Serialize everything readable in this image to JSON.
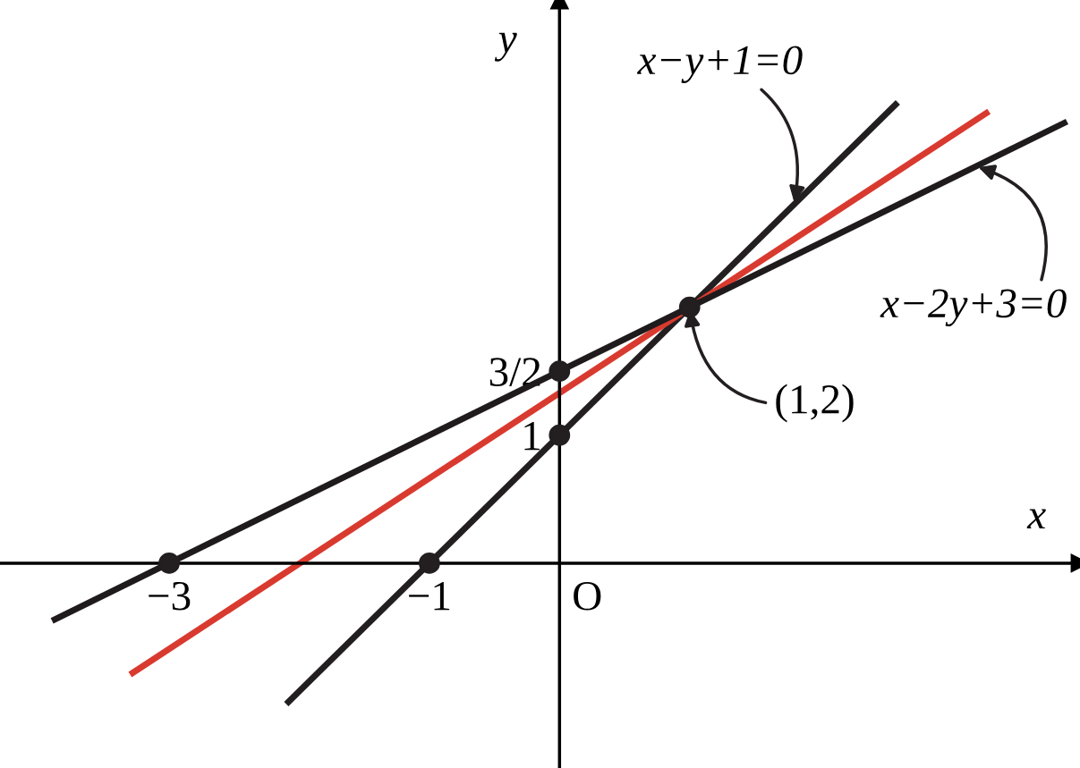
{
  "chart_data": {
    "type": "line",
    "xlabel": "x",
    "ylabel": "y",
    "xlim": [
      -4.3,
      4.0
    ],
    "ylim": [
      -1.6,
      4.4
    ],
    "xticks": [
      {
        "value": -3,
        "label": "−3"
      },
      {
        "value": -1,
        "label": "−1"
      }
    ],
    "yticks": [
      1,
      {
        "value": 1.5,
        "label": "3/2"
      }
    ],
    "grid": false,
    "series": [
      {
        "color": "#231f20",
        "x": [
          -2.1,
          2.6
        ],
        "values": [
          -1.1,
          3.6
        ]
      },
      {
        "color": "#d93a2f",
        "x": [
          -3.3,
          3.3
        ],
        "values": [
          -0.87,
          3.53
        ]
      },
      {
        "color": "#1f1b1c",
        "x": [
          -3.9,
          3.9
        ],
        "values": [
          -0.45,
          3.45
        ]
      },
      {
        "type": "scatter",
        "color": "#231f20",
        "marker": "circle",
        "x": [
          -3,
          -1,
          0,
          0,
          1
        ],
        "values": [
          0,
          0,
          1,
          1.5,
          2
        ]
      }
    ],
    "annotations": [
      {
        "text": "x−y+1=0",
        "x": 1.8,
        "y": 2.8
      },
      {
        "text": "x−2y+3=0",
        "x": 3.2,
        "y": 3.1
      },
      {
        "text": "(1,2)",
        "x": 1,
        "y": 2
      },
      "O"
    ]
  }
}
